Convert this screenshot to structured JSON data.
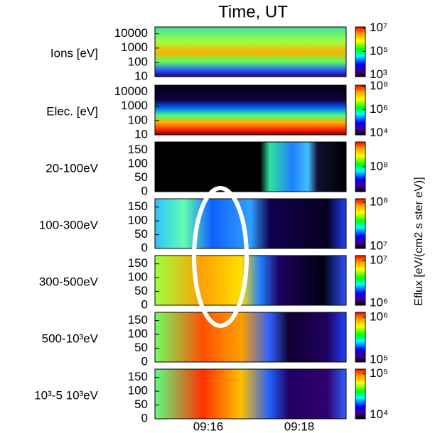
{
  "title": "Time, UT",
  "xticks": [
    "09:16",
    "09:18"
  ],
  "colorbar_label": "Eflux [eV/(cm2 s ster eV)]",
  "chart_data": [
    {
      "type": "heatmap",
      "ylabel": "Ions  [eV]",
      "log": true,
      "ylim": [
        10,
        30000
      ],
      "yticks": [
        10,
        100,
        1000,
        10000
      ],
      "clim": [
        700,
        12000000
      ],
      "cticks": [
        {
          "value": 1000,
          "label": "10³"
        },
        {
          "value": 100000,
          "label": "10⁵"
        },
        {
          "value": 10000000,
          "label": "10⁷"
        }
      ]
    },
    {
      "type": "heatmap",
      "ylabel": "Elec. [eV]",
      "log": true,
      "ylim": [
        10,
        30000
      ],
      "yticks": [
        10,
        100,
        1000,
        10000
      ],
      "clim": [
        7000,
        120000000
      ],
      "cticks": [
        {
          "value": 10000,
          "label": "10⁴"
        },
        {
          "value": 1000000,
          "label": "10⁶"
        },
        {
          "value": 100000000,
          "label": "10⁸"
        }
      ]
    },
    {
      "type": "heatmap",
      "ylabel": "20-100eV",
      "log": false,
      "ylim": [
        0,
        180
      ],
      "yticks": [
        0,
        50,
        100,
        150
      ],
      "clim": [
        10000000,
        1000000000
      ],
      "cticks": [
        {
          "value": 100000000,
          "label": "10⁸"
        }
      ]
    },
    {
      "type": "heatmap",
      "ylabel": "100-300eV",
      "log": false,
      "ylim": [
        0,
        180
      ],
      "yticks": [
        0,
        50,
        100,
        150
      ],
      "clim": [
        9000000,
        120000000
      ],
      "cticks": [
        {
          "value": 10000000,
          "label": "10⁷"
        },
        {
          "value": 100000000,
          "label": "10⁸"
        }
      ]
    },
    {
      "type": "heatmap",
      "ylabel": "300-500eV",
      "log": false,
      "ylim": [
        0,
        180
      ],
      "yticks": [
        0,
        50,
        100,
        150
      ],
      "clim": [
        900000,
        13000000
      ],
      "cticks": [
        {
          "value": 1000000,
          "label": "10⁶"
        },
        {
          "value": 10000000,
          "label": "10⁷"
        }
      ]
    },
    {
      "type": "heatmap",
      "ylabel": "500-10³eV",
      "log": false,
      "ylim": [
        0,
        180
      ],
      "yticks": [
        0,
        50,
        100,
        150
      ],
      "clim": [
        90000,
        1300000
      ],
      "cticks": [
        {
          "value": 100000,
          "label": "10⁵"
        },
        {
          "value": 1000000,
          "label": "10⁶"
        }
      ]
    },
    {
      "type": "heatmap",
      "ylabel": "10³-5 10³eV",
      "log": false,
      "ylim": [
        0,
        180
      ],
      "yticks": [
        0,
        50,
        100,
        150
      ],
      "clim": [
        8000,
        130000
      ],
      "cticks": [
        {
          "value": 10000,
          "label": "10⁴"
        },
        {
          "value": 100000,
          "label": "10⁵"
        }
      ]
    }
  ]
}
